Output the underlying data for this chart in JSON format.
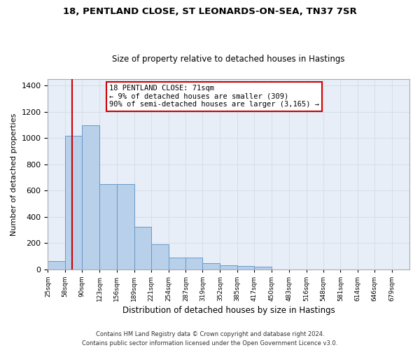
{
  "title_line1": "18, PENTLAND CLOSE, ST LEONARDS-ON-SEA, TN37 7SR",
  "title_line2": "Size of property relative to detached houses in Hastings",
  "xlabel": "Distribution of detached houses by size in Hastings",
  "ylabel": "Number of detached properties",
  "footer_line1": "Contains HM Land Registry data © Crown copyright and database right 2024.",
  "footer_line2": "Contains public sector information licensed under the Open Government Licence v3.0.",
  "bar_edges": [
    25,
    58,
    90,
    123,
    156,
    189,
    221,
    254,
    287,
    319,
    352,
    385,
    417,
    450,
    483,
    516,
    548,
    581,
    614,
    646,
    679
  ],
  "bar_heights": [
    62,
    1020,
    1100,
    650,
    650,
    325,
    188,
    90,
    90,
    45,
    28,
    25,
    18,
    0,
    0,
    0,
    0,
    0,
    0,
    0
  ],
  "bar_color": "#b8d0ea",
  "bar_edge_color": "#6699cc",
  "background_color": "#e8eef8",
  "grid_color": "#d8dee8",
  "fig_background": "#ffffff",
  "red_line_x": 71,
  "annotation_line1": "18 PENTLAND CLOSE: 71sqm",
  "annotation_line2": "← 9% of detached houses are smaller (309)",
  "annotation_line3": "90% of semi-detached houses are larger (3,165) →",
  "annotation_box_color": "#ffffff",
  "annotation_box_edge_color": "#cc0000",
  "ylim": [
    0,
    1450
  ],
  "yticks": [
    0,
    200,
    400,
    600,
    800,
    1000,
    1200,
    1400
  ]
}
